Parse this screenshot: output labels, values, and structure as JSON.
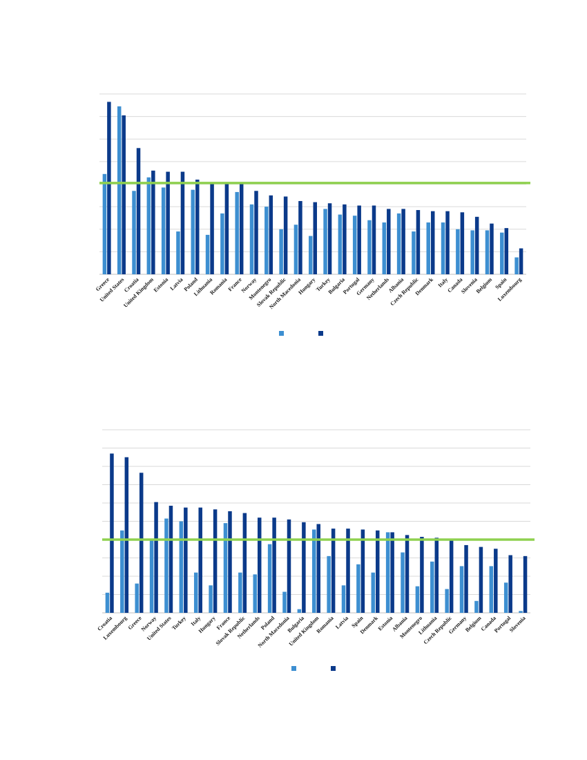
{
  "colors": {
    "series_light": "#3d8fd1",
    "series_dark": "#0b3a8a",
    "average_line": "#8fd14f",
    "grid": "#d9d9d9"
  },
  "chart_data": [
    {
      "type": "bar",
      "title": "",
      "xlabel": "",
      "ylabel": "",
      "grid": true,
      "legend": "bottom-center",
      "ylim": [
        0,
        8
      ],
      "reference_line": 4.05,
      "categories": [
        "Greece",
        "United States",
        "Croatia",
        "United Kingdom",
        "Estonia",
        "Latvia",
        "Poland",
        "Lithuania",
        "Romania",
        "France",
        "Norway",
        "Montenegro",
        "Slovak Republic",
        "North Macedonia",
        "Hungary",
        "Turkey",
        "Bulgaria",
        "Portugal",
        "Germany",
        "Netherlands",
        "Albania",
        "Czech Republic",
        "Denmark",
        "Italy",
        "Canada",
        "Slovenia",
        "Belgium",
        "Spain",
        "Luxembourg"
      ],
      "series": [
        {
          "values": [
            4.45,
            7.45,
            3.7,
            4.3,
            3.85,
            1.9,
            3.75,
            1.75,
            2.7,
            3.65,
            3.1,
            3.0,
            2.0,
            2.2,
            1.7,
            2.9,
            2.65,
            2.6,
            2.4,
            2.3,
            2.7,
            1.9,
            2.3,
            2.3,
            2.0,
            1.95,
            1.95,
            1.85,
            0.75
          ]
        },
        {
          "values": [
            7.65,
            7.05,
            5.6,
            4.6,
            4.55,
            4.55,
            4.2,
            4.0,
            4.0,
            4.0,
            3.7,
            3.5,
            3.45,
            3.25,
            3.2,
            3.15,
            3.1,
            3.05,
            3.05,
            2.9,
            2.9,
            2.85,
            2.8,
            2.8,
            2.75,
            2.55,
            2.25,
            2.05,
            1.15
          ]
        }
      ]
    },
    {
      "type": "bar",
      "title": "",
      "xlabel": "",
      "ylabel": "",
      "grid": true,
      "legend": "bottom-center",
      "ylim": [
        0,
        10
      ],
      "reference_line": 4.0,
      "categories": [
        "Croatia",
        "Luxembourg",
        "Greece",
        "Norway",
        "United States",
        "Turkey",
        "Italy",
        "Hungary",
        "France",
        "Slovak Republic",
        "Netherlands",
        "Poland",
        "North Macedonia",
        "Bulgaria",
        "United Kingdom",
        "Romania",
        "Latvia",
        "Spain",
        "Denmark",
        "Estonia",
        "Albania",
        "Montenegro",
        "Lithuania",
        "Czech Republic",
        "Germany",
        "Belgium",
        "Canada",
        "Portugal",
        "Slovenia"
      ],
      "series": [
        {
          "values": [
            1.1,
            4.5,
            1.6,
            4.05,
            5.15,
            5.0,
            2.2,
            1.5,
            4.9,
            2.2,
            2.1,
            3.75,
            1.15,
            0.2,
            4.55,
            3.1,
            1.5,
            2.65,
            2.2,
            4.4,
            3.3,
            1.45,
            2.8,
            1.3,
            2.55,
            0.65,
            2.55,
            1.65,
            0.1
          ]
        },
        {
          "values": [
            8.7,
            8.5,
            7.65,
            6.05,
            5.85,
            5.75,
            5.75,
            5.65,
            5.55,
            5.45,
            5.2,
            5.2,
            5.1,
            4.95,
            4.85,
            4.6,
            4.6,
            4.55,
            4.5,
            4.4,
            4.25,
            4.15,
            4.1,
            3.95,
            3.7,
            3.6,
            3.5,
            3.15,
            3.1
          ]
        }
      ]
    }
  ]
}
